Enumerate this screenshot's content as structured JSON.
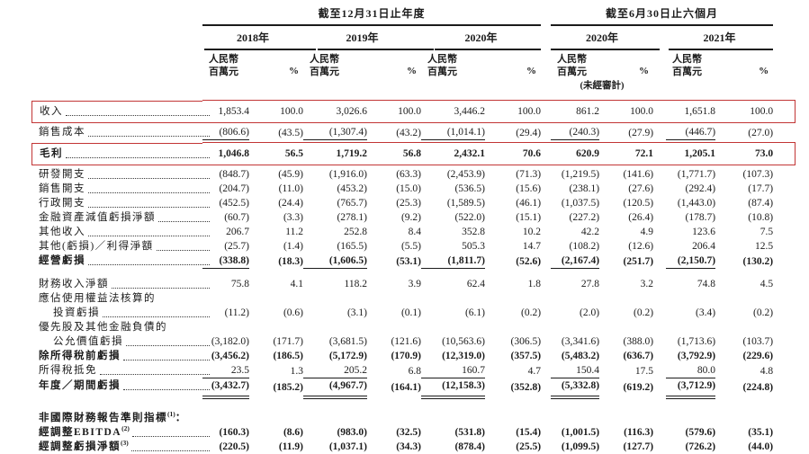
{
  "page": {
    "background": "#ffffff",
    "text_color": "#1b1b1b",
    "highlight_box_color": "#c23535"
  },
  "table": {
    "column_groups": [
      {
        "title": "截至12月31日止年度",
        "years": [
          "2018年",
          "2019年",
          "2020年"
        ]
      },
      {
        "title": "截至6月30日止六個月",
        "years": [
          "2020年",
          "2021年"
        ]
      }
    ],
    "unit_currency_line1": "人民幣",
    "unit_currency_line2": "百萬元",
    "unit_percent": "%",
    "unaudited_note": "(未經審計)",
    "rows": [
      {
        "label": "收入",
        "boxed": true,
        "leader": true,
        "values": [
          "1,853.4",
          "100.0",
          "3,026.6",
          "100.0",
          "3,446.2",
          "100.0",
          "861.2",
          "100.0",
          "1,651.8",
          "100.0"
        ]
      },
      {
        "label": "銷售成本",
        "leader": true,
        "rule": "single",
        "values": [
          "(806.6)",
          "(43.5)",
          "(1,307.4)",
          "(43.2)",
          "(1,014.1)",
          "(29.4)",
          "(240.3)",
          "(27.9)",
          "(446.7)",
          "(27.0)"
        ]
      },
      {
        "label": "毛利",
        "bold": true,
        "boxed": true,
        "leader": true,
        "values": [
          "1,046.8",
          "56.5",
          "1,719.2",
          "56.8",
          "2,432.1",
          "70.6",
          "620.9",
          "72.1",
          "1,205.1",
          "73.0"
        ]
      },
      {
        "label": "研發開支",
        "leader": true,
        "values": [
          "(848.7)",
          "(45.9)",
          "(1,916.0)",
          "(63.3)",
          "(2,453.9)",
          "(71.3)",
          "(1,219.5)",
          "(141.6)",
          "(1,771.7)",
          "(107.3)"
        ]
      },
      {
        "label": "銷售開支",
        "leader": true,
        "values": [
          "(204.7)",
          "(11.0)",
          "(453.2)",
          "(15.0)",
          "(536.5)",
          "(15.6)",
          "(238.1)",
          "(27.6)",
          "(292.4)",
          "(17.7)"
        ]
      },
      {
        "label": "行政開支",
        "leader": true,
        "values": [
          "(452.5)",
          "(24.4)",
          "(765.7)",
          "(25.3)",
          "(1,589.5)",
          "(46.1)",
          "(1,037.5)",
          "(120.5)",
          "(1,443.0)",
          "(87.4)"
        ]
      },
      {
        "label": "金融資產減值虧損淨額",
        "leader": true,
        "values": [
          "(60.7)",
          "(3.3)",
          "(278.1)",
          "(9.2)",
          "(522.0)",
          "(15.1)",
          "(227.2)",
          "(26.4)",
          "(178.7)",
          "(10.8)"
        ]
      },
      {
        "label": "其他收入",
        "leader": true,
        "values": [
          "206.7",
          "11.2",
          "252.8",
          "8.4",
          "352.8",
          "10.2",
          "42.2",
          "4.9",
          "123.6",
          "7.5"
        ]
      },
      {
        "label": "其他(虧損)／利得淨額",
        "leader": true,
        "values": [
          "(25.7)",
          "(1.4)",
          "(165.5)",
          "(5.5)",
          "505.3",
          "14.7",
          "(108.2)",
          "(12.6)",
          "206.4",
          "12.5"
        ]
      },
      {
        "label": "經營虧損",
        "bold": true,
        "leader": true,
        "rule": "single",
        "values": [
          "(338.8)",
          "(18.3)",
          "(1,606.5)",
          "(53.1)",
          "(1,811.7)",
          "(52.6)",
          "(2,167.4)",
          "(251.7)",
          "(2,150.7)",
          "(130.2)"
        ]
      },
      {
        "spacer": 9
      },
      {
        "label": "財務收入淨額",
        "leader": true,
        "values": [
          "75.8",
          "4.1",
          "118.2",
          "3.9",
          "62.4",
          "1.8",
          "27.8",
          "3.2",
          "74.8",
          "4.5"
        ]
      },
      {
        "label": "應佔使用權益法核算的",
        "label_only": true
      },
      {
        "label": "投資虧損",
        "indent": true,
        "leader": true,
        "values": [
          "(11.2)",
          "(0.6)",
          "(3.1)",
          "(0.1)",
          "(6.1)",
          "(0.2)",
          "(2.0)",
          "(0.2)",
          "(3.4)",
          "(0.2)"
        ]
      },
      {
        "label": "優先股及其他金融負債的",
        "label_only": true
      },
      {
        "label": "公允價值虧損",
        "indent": true,
        "leader": true,
        "values": [
          "(3,182.0)",
          "(171.7)",
          "(3,681.5)",
          "(121.6)",
          "(10,563.6)",
          "(306.5)",
          "(3,341.6)",
          "(388.0)",
          "(1,713.6)",
          "(103.7)"
        ]
      },
      {
        "label": "除所得稅前虧損",
        "bold": true,
        "leader": true,
        "values": [
          "(3,456.2)",
          "(186.5)",
          "(5,172.9)",
          "(170.9)",
          "(12,319.0)",
          "(357.5)",
          "(5,483.2)",
          "(636.7)",
          "(3,792.9)",
          "(229.6)"
        ]
      },
      {
        "label": "所得稅抵免",
        "leader": true,
        "rule": "single",
        "values": [
          "23.5",
          "1.3",
          "205.2",
          "6.8",
          "160.7",
          "4.7",
          "150.4",
          "17.5",
          "80.0",
          "4.8"
        ]
      },
      {
        "label": "年度／期間虧損",
        "bold": true,
        "leader": true,
        "rule": "double",
        "values": [
          "(3,432.7)",
          "(185.2)",
          "(4,967.7)",
          "(164.1)",
          "(12,158.3)",
          "(352.8)",
          "(5,332.8)",
          "(619.2)",
          "(3,712.9)",
          "(224.8)"
        ]
      },
      {
        "spacer": 13
      },
      {
        "label": "非國際財務報告準則指標",
        "sup": "(1)",
        "suffix": "：",
        "bold": true,
        "label_only": true
      },
      {
        "label": "經調整EBITDA",
        "sup": "(2)",
        "bold": true,
        "leader": true,
        "values": [
          "(160.3)",
          "(8.6)",
          "(983.0)",
          "(32.5)",
          "(531.8)",
          "(15.4)",
          "(1,001.5)",
          "(116.3)",
          "(579.6)",
          "(35.1)"
        ]
      },
      {
        "label": "經調整虧損淨額",
        "sup": "(3)",
        "bold": true,
        "leader": true,
        "values": [
          "(220.5)",
          "(11.9)",
          "(1,037.1)",
          "(34.3)",
          "(878.4)",
          "(25.5)",
          "(1,099.5)",
          "(127.7)",
          "(726.2)",
          "(44.0)"
        ]
      }
    ]
  }
}
